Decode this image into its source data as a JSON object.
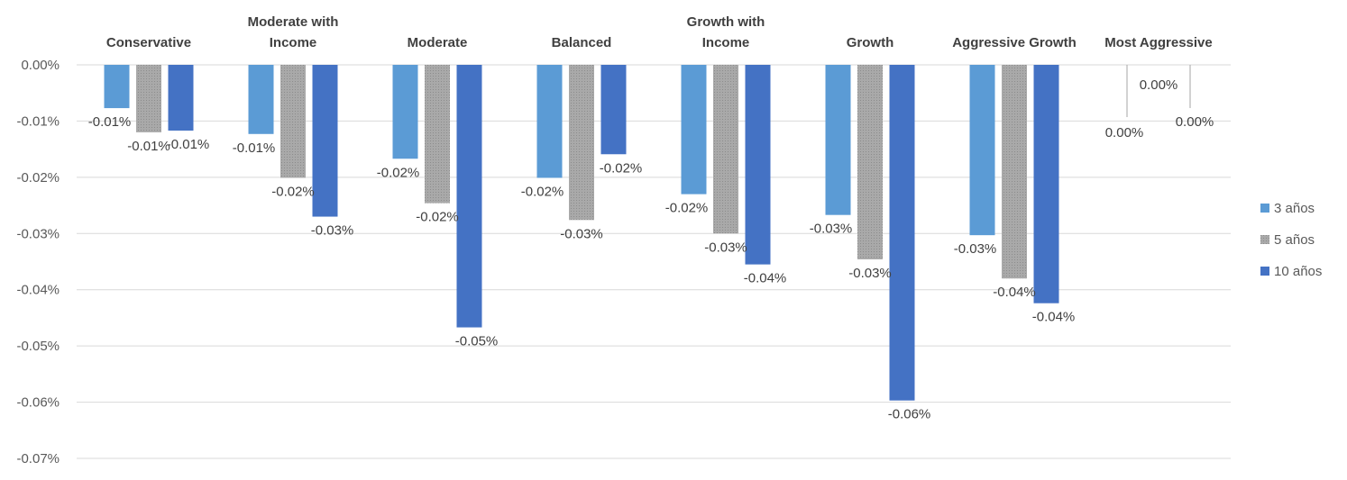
{
  "chart_data": {
    "type": "bar",
    "orientation": "vertical",
    "category_labels_position": "top",
    "categories": [
      [
        "Conservative"
      ],
      [
        "Moderate with",
        "Income"
      ],
      [
        "Moderate"
      ],
      [
        "Balanced"
      ],
      [
        "Growth with",
        "Income"
      ],
      [
        "Growth"
      ],
      [
        "Aggressive Growth"
      ],
      [
        "Most Aggressive"
      ]
    ],
    "series": [
      {
        "name": "3 años",
        "color": "#5b9bd5",
        "values": [
          -0.0077,
          -0.0123,
          -0.0167,
          -0.0201,
          -0.023,
          -0.0267,
          -0.0303,
          0
        ],
        "labels": [
          "-0.01%",
          "-0.01%",
          "-0.02%",
          "-0.02%",
          "-0.02%",
          "-0.03%",
          "-0.03%",
          "0.00%"
        ]
      },
      {
        "name": "5 años",
        "color": "#a5a5a5",
        "pattern": "dotted",
        "values": [
          -0.012,
          -0.0201,
          -0.0246,
          -0.0276,
          -0.03,
          -0.0346,
          -0.038,
          0
        ],
        "labels": [
          "-0.01%",
          "-0.02%",
          "-0.02%",
          "-0.03%",
          "-0.03%",
          "-0.03%",
          "-0.04%",
          "0.00%"
        ]
      },
      {
        "name": "10 años",
        "color": "#4472c4",
        "values": [
          -0.0117,
          -0.027,
          -0.0467,
          -0.0159,
          -0.0355,
          -0.0597,
          -0.0424,
          0
        ],
        "labels": [
          "-0.01%",
          "-0.03%",
          "-0.05%",
          "-0.02%",
          "-0.04%",
          "-0.06%",
          "-0.04%",
          "0.00%"
        ]
      }
    ],
    "y_axis": {
      "min": -0.07,
      "max": 0,
      "step": 0.01,
      "tick_labels": [
        "0.00%",
        "-0.01%",
        "-0.02%",
        "-0.03%",
        "-0.04%",
        "-0.05%",
        "-0.06%",
        "-0.07%"
      ]
    },
    "title": "",
    "xlabel": "",
    "ylabel": "",
    "grid": true,
    "legend_position": "right"
  }
}
